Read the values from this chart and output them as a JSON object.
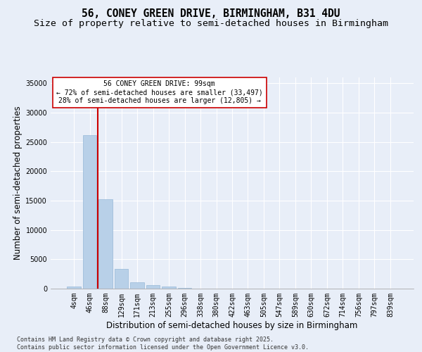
{
  "title_line1": "56, CONEY GREEN DRIVE, BIRMINGHAM, B31 4DU",
  "title_line2": "Size of property relative to semi-detached houses in Birmingham",
  "xlabel": "Distribution of semi-detached houses by size in Birmingham",
  "ylabel": "Number of semi-detached properties",
  "categories": [
    "4sqm",
    "46sqm",
    "88sqm",
    "129sqm",
    "171sqm",
    "213sqm",
    "255sqm",
    "296sqm",
    "338sqm",
    "380sqm",
    "422sqm",
    "463sqm",
    "505sqm",
    "547sqm",
    "589sqm",
    "630sqm",
    "672sqm",
    "714sqm",
    "756sqm",
    "797sqm",
    "839sqm"
  ],
  "values": [
    400,
    26200,
    15200,
    3400,
    1100,
    550,
    350,
    100,
    0,
    0,
    0,
    0,
    0,
    0,
    0,
    0,
    0,
    0,
    0,
    0,
    0
  ],
  "bar_color": "#b8d0e8",
  "bar_edgecolor": "#96b8d8",
  "vline_pos": 1.5,
  "vline_color": "#cc0000",
  "annotation_line1": "56 CONEY GREEN DRIVE: 99sqm",
  "annotation_line2": "← 72% of semi-detached houses are smaller (33,497)",
  "annotation_line3": "28% of semi-detached houses are larger (12,805) →",
  "ylim_max": 36000,
  "yticks": [
    0,
    5000,
    10000,
    15000,
    20000,
    25000,
    30000,
    35000
  ],
  "background_color": "#e8eef8",
  "grid_color": "#ffffff",
  "footer_text": "Contains HM Land Registry data © Crown copyright and database right 2025.\nContains public sector information licensed under the Open Government Licence v3.0.",
  "title_fontsize": 10.5,
  "subtitle_fontsize": 9.5,
  "axis_label_fontsize": 8.5,
  "tick_fontsize": 7,
  "annotation_fontsize": 7,
  "footer_fontsize": 6
}
